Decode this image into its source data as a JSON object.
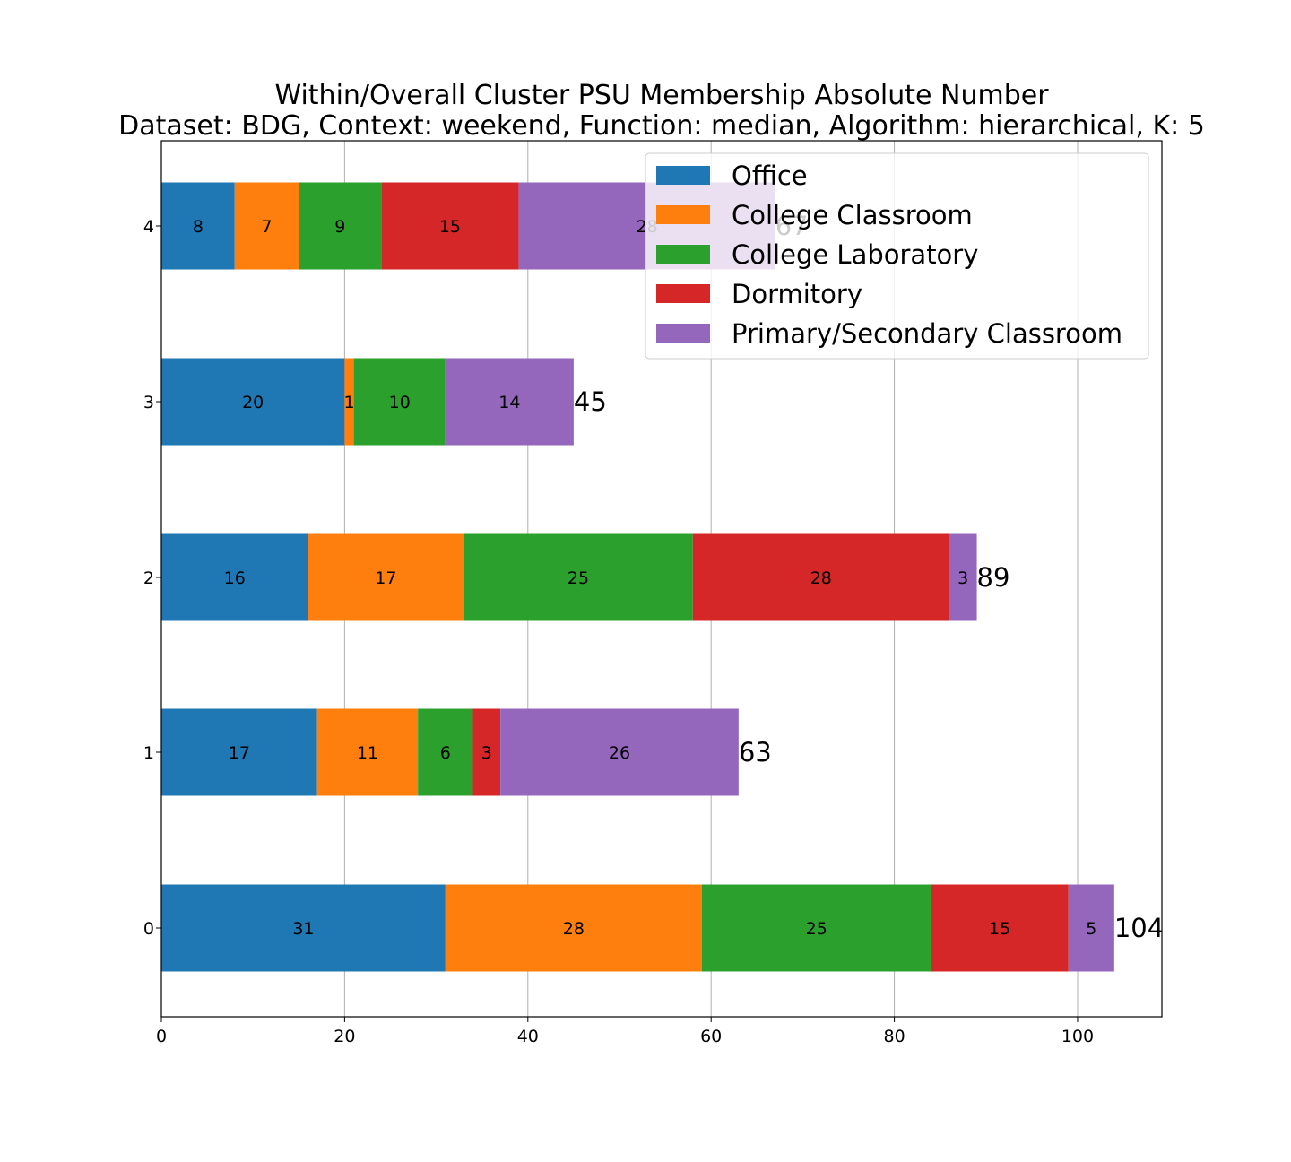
{
  "chart_data": {
    "type": "bar",
    "orientation": "horizontal",
    "stacked": true,
    "title": [
      "Within/Overall Cluster PSU Membership Absolute Number",
      "Dataset: BDG, Context: weekend, Function: median, Algorithm: hierarchical, K: 5"
    ],
    "xlabel": "",
    "ylabel": "",
    "categories": [
      "0",
      "1",
      "2",
      "3",
      "4"
    ],
    "series": [
      {
        "name": "Office",
        "color": "#1f77b4",
        "values": [
          31,
          17,
          16,
          20,
          8
        ]
      },
      {
        "name": "College Classroom",
        "color": "#ff7f0e",
        "values": [
          28,
          11,
          17,
          1,
          7
        ]
      },
      {
        "name": "College Laboratory",
        "color": "#2ca02c",
        "values": [
          25,
          6,
          25,
          10,
          9
        ]
      },
      {
        "name": "Dormitory",
        "color": "#d62728",
        "values": [
          15,
          3,
          28,
          0,
          15
        ]
      },
      {
        "name": "Primary/Secondary Classroom",
        "color": "#9467bd",
        "values": [
          5,
          26,
          3,
          14,
          28
        ]
      }
    ],
    "totals": [
      104,
      63,
      89,
      45,
      67
    ],
    "xlim": [
      0,
      109.2
    ],
    "xticks": [
      0,
      20,
      40,
      60,
      80,
      100
    ],
    "grid": "x",
    "legend_position": "top-right"
  }
}
